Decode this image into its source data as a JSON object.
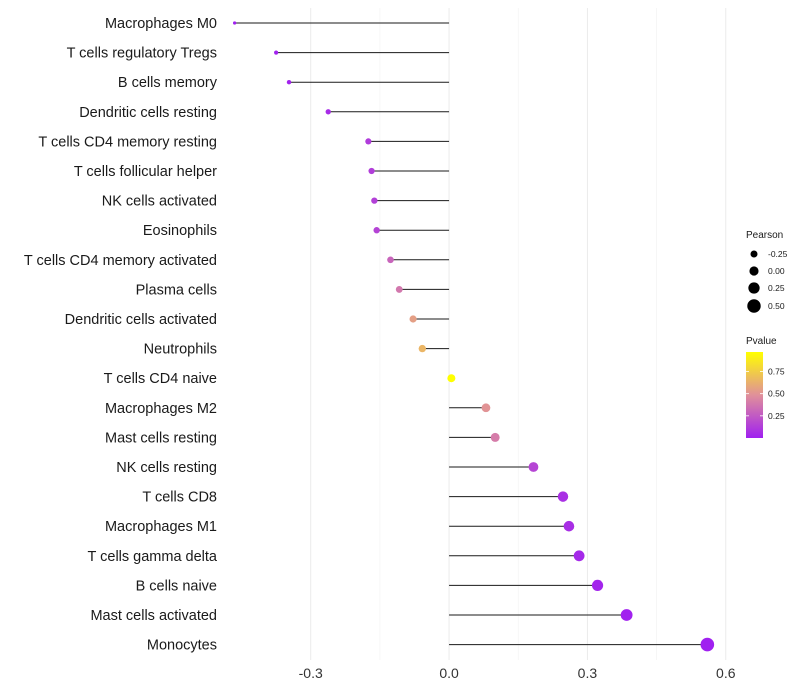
{
  "chart_data": {
    "type": "lollipop",
    "title": "",
    "xlabel": "",
    "ylabel": "",
    "xlim": [
      -0.475,
      0.62
    ],
    "x_ticks": [
      -0.3,
      0.0,
      0.3,
      0.6
    ],
    "x_tick_labels": [
      "-0.3",
      "0.0",
      "0.3",
      "0.6"
    ],
    "grid": "vertical",
    "categories": [
      "Macrophages M0",
      "T cells regulatory  Tregs",
      "B cells memory",
      "Dendritic cells resting",
      "T cells CD4 memory resting",
      "T cells follicular helper",
      "NK cells activated",
      "Eosinophils",
      "T cells CD4 memory activated",
      "Plasma cells",
      "Dendritic cells activated",
      "Neutrophils",
      "T cells CD4 naive",
      "Macrophages M2",
      "Mast cells resting",
      "NK cells resting",
      "T cells CD8",
      "Macrophages M1",
      "T cells gamma delta",
      "B cells naive",
      "Mast cells activated",
      "Monocytes"
    ],
    "pearson": [
      -0.465,
      -0.375,
      -0.347,
      -0.262,
      -0.175,
      -0.168,
      -0.162,
      -0.157,
      -0.127,
      -0.108,
      -0.078,
      -0.058,
      0.005,
      0.08,
      0.1,
      0.183,
      0.247,
      0.26,
      0.282,
      0.322,
      0.385,
      0.56
    ],
    "pvalue": [
      0.002,
      0.01,
      0.015,
      0.05,
      0.12,
      0.13,
      0.14,
      0.15,
      0.3,
      0.38,
      0.55,
      0.65,
      0.97,
      0.5,
      0.4,
      0.16,
      0.07,
      0.06,
      0.04,
      0.02,
      0.005,
      0.0001
    ],
    "legend": {
      "size_title": "Pearson",
      "size_values": [
        -0.25,
        0.0,
        0.25,
        0.5
      ],
      "size_labels": [
        "-0.25",
        "0.00",
        "0.25",
        "0.50"
      ],
      "color_title": "Pvalue",
      "color_ticks": [
        0.25,
        0.5,
        0.75
      ],
      "color_labels": [
        "0.25",
        "0.50",
        "0.75"
      ],
      "color_range": [
        0.0,
        0.97
      ],
      "color_low": "#A020F0",
      "color_mid": "#E0909A",
      "color_high": "#FFFF00",
      "position": "right"
    }
  }
}
